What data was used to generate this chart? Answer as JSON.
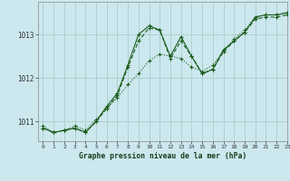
{
  "title": "Graphe pression niveau de la mer (hPa)",
  "bg_color": "#cce8ee",
  "grid_color": "#aacccc",
  "line_color": "#1a5c1a",
  "xlim": [
    -0.5,
    23
  ],
  "ylim": [
    1010.55,
    1013.75
  ],
  "yticks": [
    1011,
    1012,
    1013
  ],
  "xtick_labels": [
    "0",
    "1",
    "2",
    "3",
    "4",
    "5",
    "6",
    "7",
    "8",
    "9",
    "10",
    "11",
    "12",
    "13",
    "14",
    "15",
    "16",
    "17",
    "18",
    "19",
    "20",
    "21",
    "22",
    "23"
  ],
  "series1_x": [
    0,
    1,
    2,
    3,
    4,
    5,
    6,
    7,
    8,
    9,
    10,
    11,
    12,
    13,
    14,
    15,
    16,
    17,
    18,
    19,
    20,
    21,
    22,
    23
  ],
  "series1_y": [
    1010.9,
    1010.75,
    1010.8,
    1010.9,
    1010.8,
    1011.05,
    1011.3,
    1011.55,
    1011.85,
    1012.1,
    1012.4,
    1012.55,
    1012.5,
    1012.45,
    1012.25,
    1012.15,
    1012.3,
    1012.6,
    1012.9,
    1013.1,
    1013.4,
    1013.45,
    1013.45,
    1013.5
  ],
  "series2_x": [
    0,
    1,
    2,
    3,
    4,
    5,
    6,
    7,
    8,
    9,
    10,
    11,
    12,
    13,
    14,
    15,
    16,
    17,
    18,
    19,
    20,
    21,
    22,
    23
  ],
  "series2_y": [
    1010.85,
    1010.75,
    1010.8,
    1010.85,
    1010.75,
    1011.0,
    1011.35,
    1011.65,
    1012.3,
    1013.0,
    1013.2,
    1013.1,
    1012.5,
    1012.95,
    1012.5,
    1012.1,
    1012.2,
    1012.65,
    1012.85,
    1013.05,
    1013.4,
    1013.45,
    1013.45,
    1013.5
  ],
  "series3_x": [
    0,
    1,
    2,
    3,
    4,
    5,
    6,
    7,
    8,
    9,
    10,
    11,
    12,
    13,
    14,
    15,
    16,
    17,
    18,
    19,
    20,
    21,
    22,
    23
  ],
  "series3_y": [
    1010.85,
    1010.75,
    1010.8,
    1010.85,
    1010.75,
    1011.0,
    1011.3,
    1011.6,
    1012.25,
    1012.85,
    1013.15,
    1013.1,
    1012.45,
    1012.85,
    1012.5,
    1012.1,
    1012.2,
    1012.6,
    1012.85,
    1013.05,
    1013.35,
    1013.4,
    1013.4,
    1013.45
  ]
}
